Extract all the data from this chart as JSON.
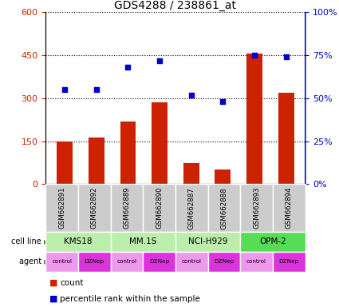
{
  "title": "GDS4288 / 238861_at",
  "samples": [
    "GSM662891",
    "GSM662892",
    "GSM662889",
    "GSM662890",
    "GSM662887",
    "GSM662888",
    "GSM662893",
    "GSM662894"
  ],
  "bar_values": [
    148,
    163,
    218,
    285,
    75,
    50,
    455,
    318
  ],
  "scatter_values": [
    55,
    55,
    68,
    72,
    52,
    48,
    75,
    74
  ],
  "ylim_left": [
    0,
    600
  ],
  "ylim_right": [
    0,
    100
  ],
  "yticks_left": [
    0,
    150,
    300,
    450,
    600
  ],
  "yticks_right": [
    0,
    25,
    50,
    75,
    100
  ],
  "ytick_labels_right": [
    "0%",
    "25%",
    "50%",
    "75%",
    "100%"
  ],
  "bar_color": "#cc2200",
  "scatter_color": "#0000cc",
  "cell_lines": [
    "KMS18",
    "MM.1S",
    "NCI-H929",
    "OPM-2"
  ],
  "cell_line_color_light": "#bbeeaa",
  "cell_line_color_bright": "#55dd55",
  "cell_line_spans": [
    [
      0,
      2
    ],
    [
      2,
      4
    ],
    [
      4,
      6
    ],
    [
      6,
      8
    ]
  ],
  "agents": [
    "control",
    "DZNep",
    "control",
    "DZNep",
    "control",
    "DZNep",
    "control",
    "DZNep"
  ],
  "agent_color_control": "#ee99ee",
  "agent_color_DZNep": "#dd33dd",
  "ylabel_left_color": "#cc2200",
  "ylabel_right_color": "#0000cc",
  "sample_box_color": "#cccccc",
  "bar_width": 0.5
}
